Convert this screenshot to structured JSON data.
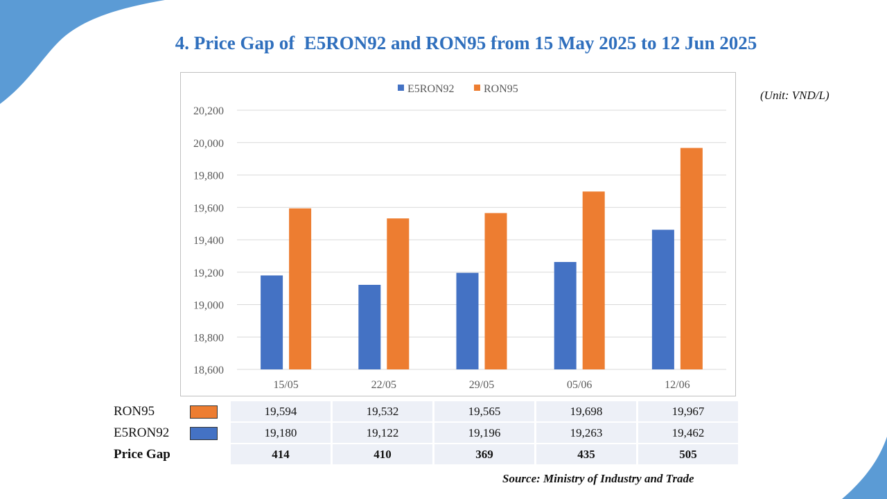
{
  "title": "4. Price Gap of  E5RON92 and RON95 from 15 May 2025 to 12 Jun 2025",
  "unit": "(Unit: VND/L)",
  "source": "Source: Ministry of Industry and Trade",
  "colors": {
    "title": "#2f6fbd",
    "e5ron92": "#4472c4",
    "ron95": "#ed7d31",
    "decor": "#5b9bd5",
    "table_bg": "#edf0f7"
  },
  "chart_data": {
    "type": "bar",
    "categories": [
      "15/05",
      "22/05",
      "29/05",
      "05/06",
      "12/06"
    ],
    "series": [
      {
        "name": "E5RON92",
        "values": [
          19180,
          19122,
          19196,
          19263,
          19462
        ]
      },
      {
        "name": "RON95",
        "values": [
          19594,
          19532,
          19565,
          19698,
          19967
        ]
      }
    ],
    "ylim": [
      18600,
      20200
    ],
    "yticks": [
      "18,600",
      "18,800",
      "19,000",
      "19,200",
      "19,400",
      "19,600",
      "19,800",
      "20,000",
      "20,200"
    ],
    "grid": true,
    "legend": "top-center"
  },
  "table": {
    "rows": [
      {
        "label": "RON95",
        "swatch": "ron95",
        "values": [
          "19,594",
          "19,532",
          "19,565",
          "19,698",
          "19,967"
        ]
      },
      {
        "label": "E5RON92",
        "swatch": "e5ron92",
        "values": [
          "19,180",
          "19,122",
          "19,196",
          "19,263",
          "19,462"
        ]
      },
      {
        "label": "Price Gap",
        "values": [
          "414",
          "410",
          "369",
          "435",
          "505"
        ]
      }
    ]
  }
}
